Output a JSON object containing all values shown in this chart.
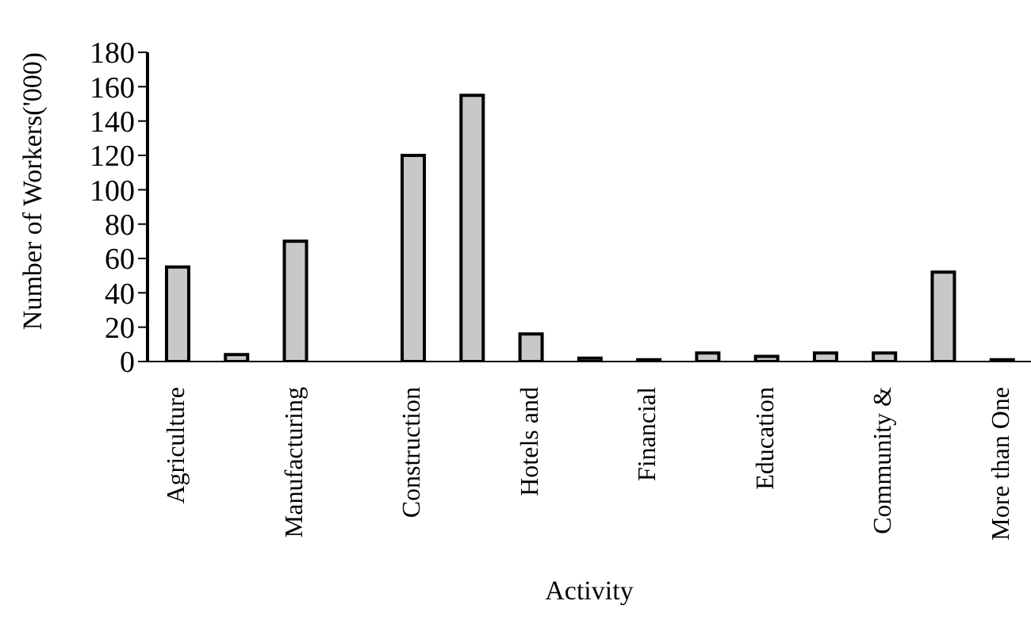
{
  "chart_data": {
    "type": "bar",
    "xlabel": "Activity",
    "ylabel": "Number of Workers('000)",
    "categories": [
      "Agriculture",
      null,
      "Manufacturing",
      null,
      "Construction",
      null,
      "Hotels and",
      null,
      "Financial",
      null,
      "Education",
      null,
      "Community &",
      null,
      "More than One"
    ],
    "values": [
      55,
      4,
      70,
      null,
      120,
      155,
      16,
      2,
      1,
      5,
      3,
      5,
      5,
      52,
      1
    ],
    "color": "#c8c8c8",
    "ylim": [
      0,
      180
    ],
    "yticks": [
      0,
      20,
      40,
      60,
      80,
      100,
      120,
      140,
      160,
      180
    ],
    "grid": false,
    "legend": false
  }
}
